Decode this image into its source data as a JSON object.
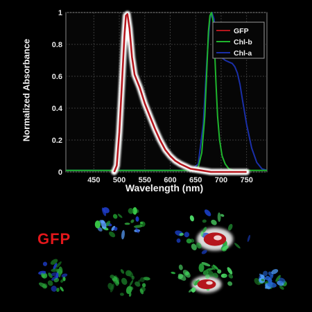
{
  "chart_data": {
    "type": "line",
    "xlabel": "Wavelength (nm)",
    "ylabel": "Normalized Absorbance",
    "xlim": [
      395,
      790
    ],
    "ylim": [
      0,
      1
    ],
    "xticks": [
      450,
      500,
      550,
      600,
      650,
      700,
      750
    ],
    "yticks": [
      0,
      0.2,
      0.4,
      0.6,
      0.8,
      1
    ],
    "ytick_labels": [
      "0",
      "0.2",
      "0.4",
      "0.6",
      "0.8",
      "1"
    ],
    "grid": true,
    "legend": "top-right",
    "series": [
      {
        "name": "GFP",
        "color": "#b5161d",
        "glow": "#ffffff",
        "x": [
          490,
          495,
          500,
          505,
          510,
          513,
          516,
          520,
          525,
          530,
          540,
          550,
          560,
          570,
          580,
          590,
          600,
          610,
          620,
          640,
          660,
          680,
          700,
          720,
          750
        ],
        "y": [
          0.0,
          0.04,
          0.25,
          0.55,
          0.85,
          0.98,
          0.99,
          0.9,
          0.72,
          0.61,
          0.53,
          0.43,
          0.35,
          0.27,
          0.2,
          0.14,
          0.1,
          0.07,
          0.05,
          0.02,
          0.01,
          0.0,
          0.0,
          0.0,
          0.0
        ]
      },
      {
        "name": "Chl-b",
        "color": "#1fb52d",
        "x": [
          395,
          450,
          500,
          550,
          600,
          640,
          655,
          662,
          668,
          672,
          675,
          678,
          681,
          684,
          687,
          690,
          693,
          697,
          702,
          708,
          715,
          725,
          740,
          790
        ],
        "y": [
          0.01,
          0.01,
          0.01,
          0.01,
          0.01,
          0.01,
          0.03,
          0.12,
          0.35,
          0.65,
          0.88,
          0.98,
          1.0,
          0.95,
          0.78,
          0.55,
          0.35,
          0.2,
          0.1,
          0.05,
          0.02,
          0.01,
          0.01,
          0.01
        ]
      },
      {
        "name": "Chl-a",
        "color": "#1a2fa8",
        "x": [
          395,
          450,
          500,
          550,
          600,
          640,
          655,
          665,
          672,
          678,
          682,
          686,
          690,
          695,
          700,
          708,
          715,
          722,
          727,
          732,
          737,
          742,
          750,
          760,
          770,
          780,
          790
        ],
        "y": [
          0.01,
          0.01,
          0.01,
          0.01,
          0.01,
          0.01,
          0.05,
          0.3,
          0.7,
          0.96,
          1.0,
          0.96,
          0.85,
          0.75,
          0.72,
          0.7,
          0.69,
          0.68,
          0.66,
          0.62,
          0.55,
          0.45,
          0.3,
          0.15,
          0.06,
          0.02,
          0.01
        ]
      }
    ]
  },
  "bottom": {
    "label": "GFP",
    "specimens": [
      {
        "id": "top-left",
        "glow": false,
        "stains": [
          "#1d8f2a",
          "#3bd04a",
          "#1f3fd0",
          "#5aa0ff"
        ]
      },
      {
        "id": "top-right",
        "glow": true,
        "stains": [
          "#25a53a",
          "#4fe06a",
          "#1a3fc8",
          "#b5161d"
        ]
      },
      {
        "id": "bottom-1",
        "glow": false,
        "stains": [
          "#1e8f2a",
          "#2fb842",
          "#1f3fd0"
        ]
      },
      {
        "id": "bottom-2",
        "glow": false,
        "stains": [
          "#166b22",
          "#2aa63c"
        ]
      },
      {
        "id": "bottom-3",
        "glow": true,
        "stains": [
          "#27a83c",
          "#4fe06a",
          "#b5161d"
        ]
      },
      {
        "id": "bottom-4",
        "glow": false,
        "stains": [
          "#1f8d2c",
          "#1f5fd0",
          "#4fa0ff"
        ]
      }
    ]
  }
}
